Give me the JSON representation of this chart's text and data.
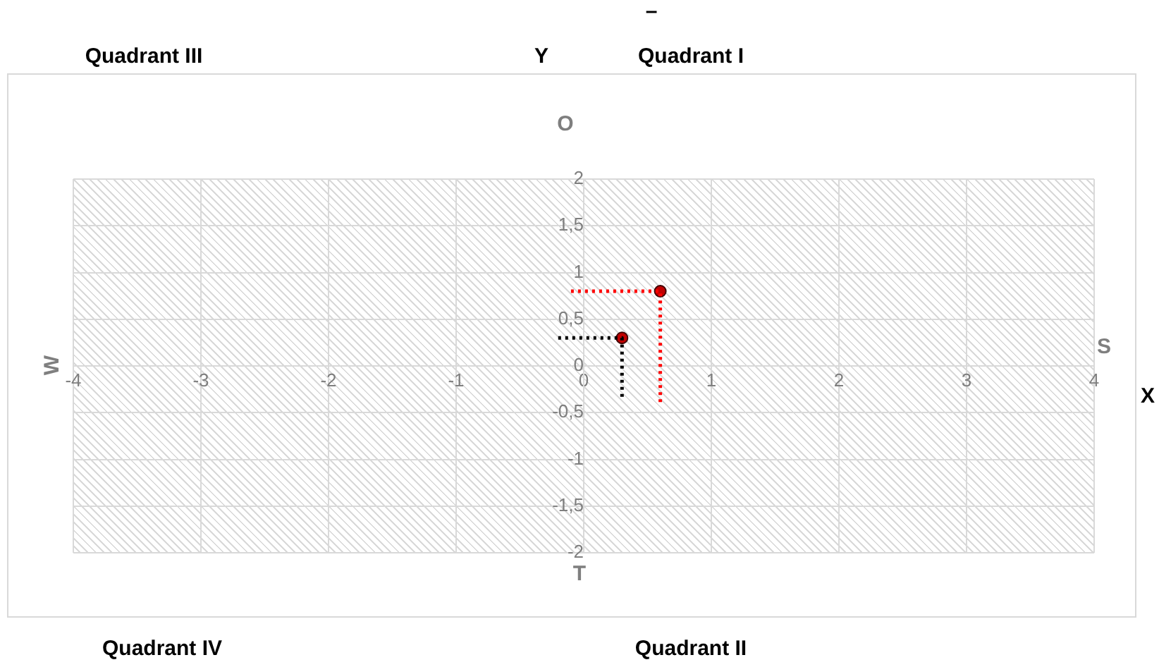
{
  "chart_data": {
    "type": "scatter",
    "title": "O",
    "xlabel": "X",
    "ylabel": "Y",
    "annotations": [
      "–",
      "Quadrant III",
      "Quadrant I",
      "Quadrant IV",
      "Quadrant II",
      "W",
      "S",
      "T"
    ],
    "xlim": [
      -4,
      4
    ],
    "xticks": [
      -4,
      -3,
      -2,
      -1,
      0,
      1,
      2,
      3,
      4
    ],
    "ylim": [
      -2,
      2
    ],
    "yticks": [
      2,
      {
        "value": 1.5,
        "label": "1,5"
      },
      1,
      {
        "value": 0.5,
        "label": "0,5"
      },
      0,
      {
        "value": -0.5,
        "label": "-0,5"
      },
      -1,
      {
        "value": -1.5,
        "label": "-1,5"
      },
      -2
    ],
    "grid": true,
    "legend": false,
    "marker": "circle",
    "series": [
      {
        "type": "line",
        "color": "#000000",
        "line_style": "dotted",
        "marker": "none",
        "x": [
          -0.2,
          0.3,
          0.3
        ],
        "values": [
          0.3,
          0.3,
          -0.35
        ]
      },
      {
        "type": "line",
        "color": "#ff0000",
        "line_style": "dotted",
        "marker": "none",
        "x": [
          -0.1,
          0.6,
          0.6
        ],
        "values": [
          0.8,
          0.8,
          -0.4
        ]
      },
      {
        "color": "#c00000",
        "x": [
          0.3,
          0.6
        ],
        "values": [
          0.3,
          0.8
        ]
      }
    ]
  }
}
